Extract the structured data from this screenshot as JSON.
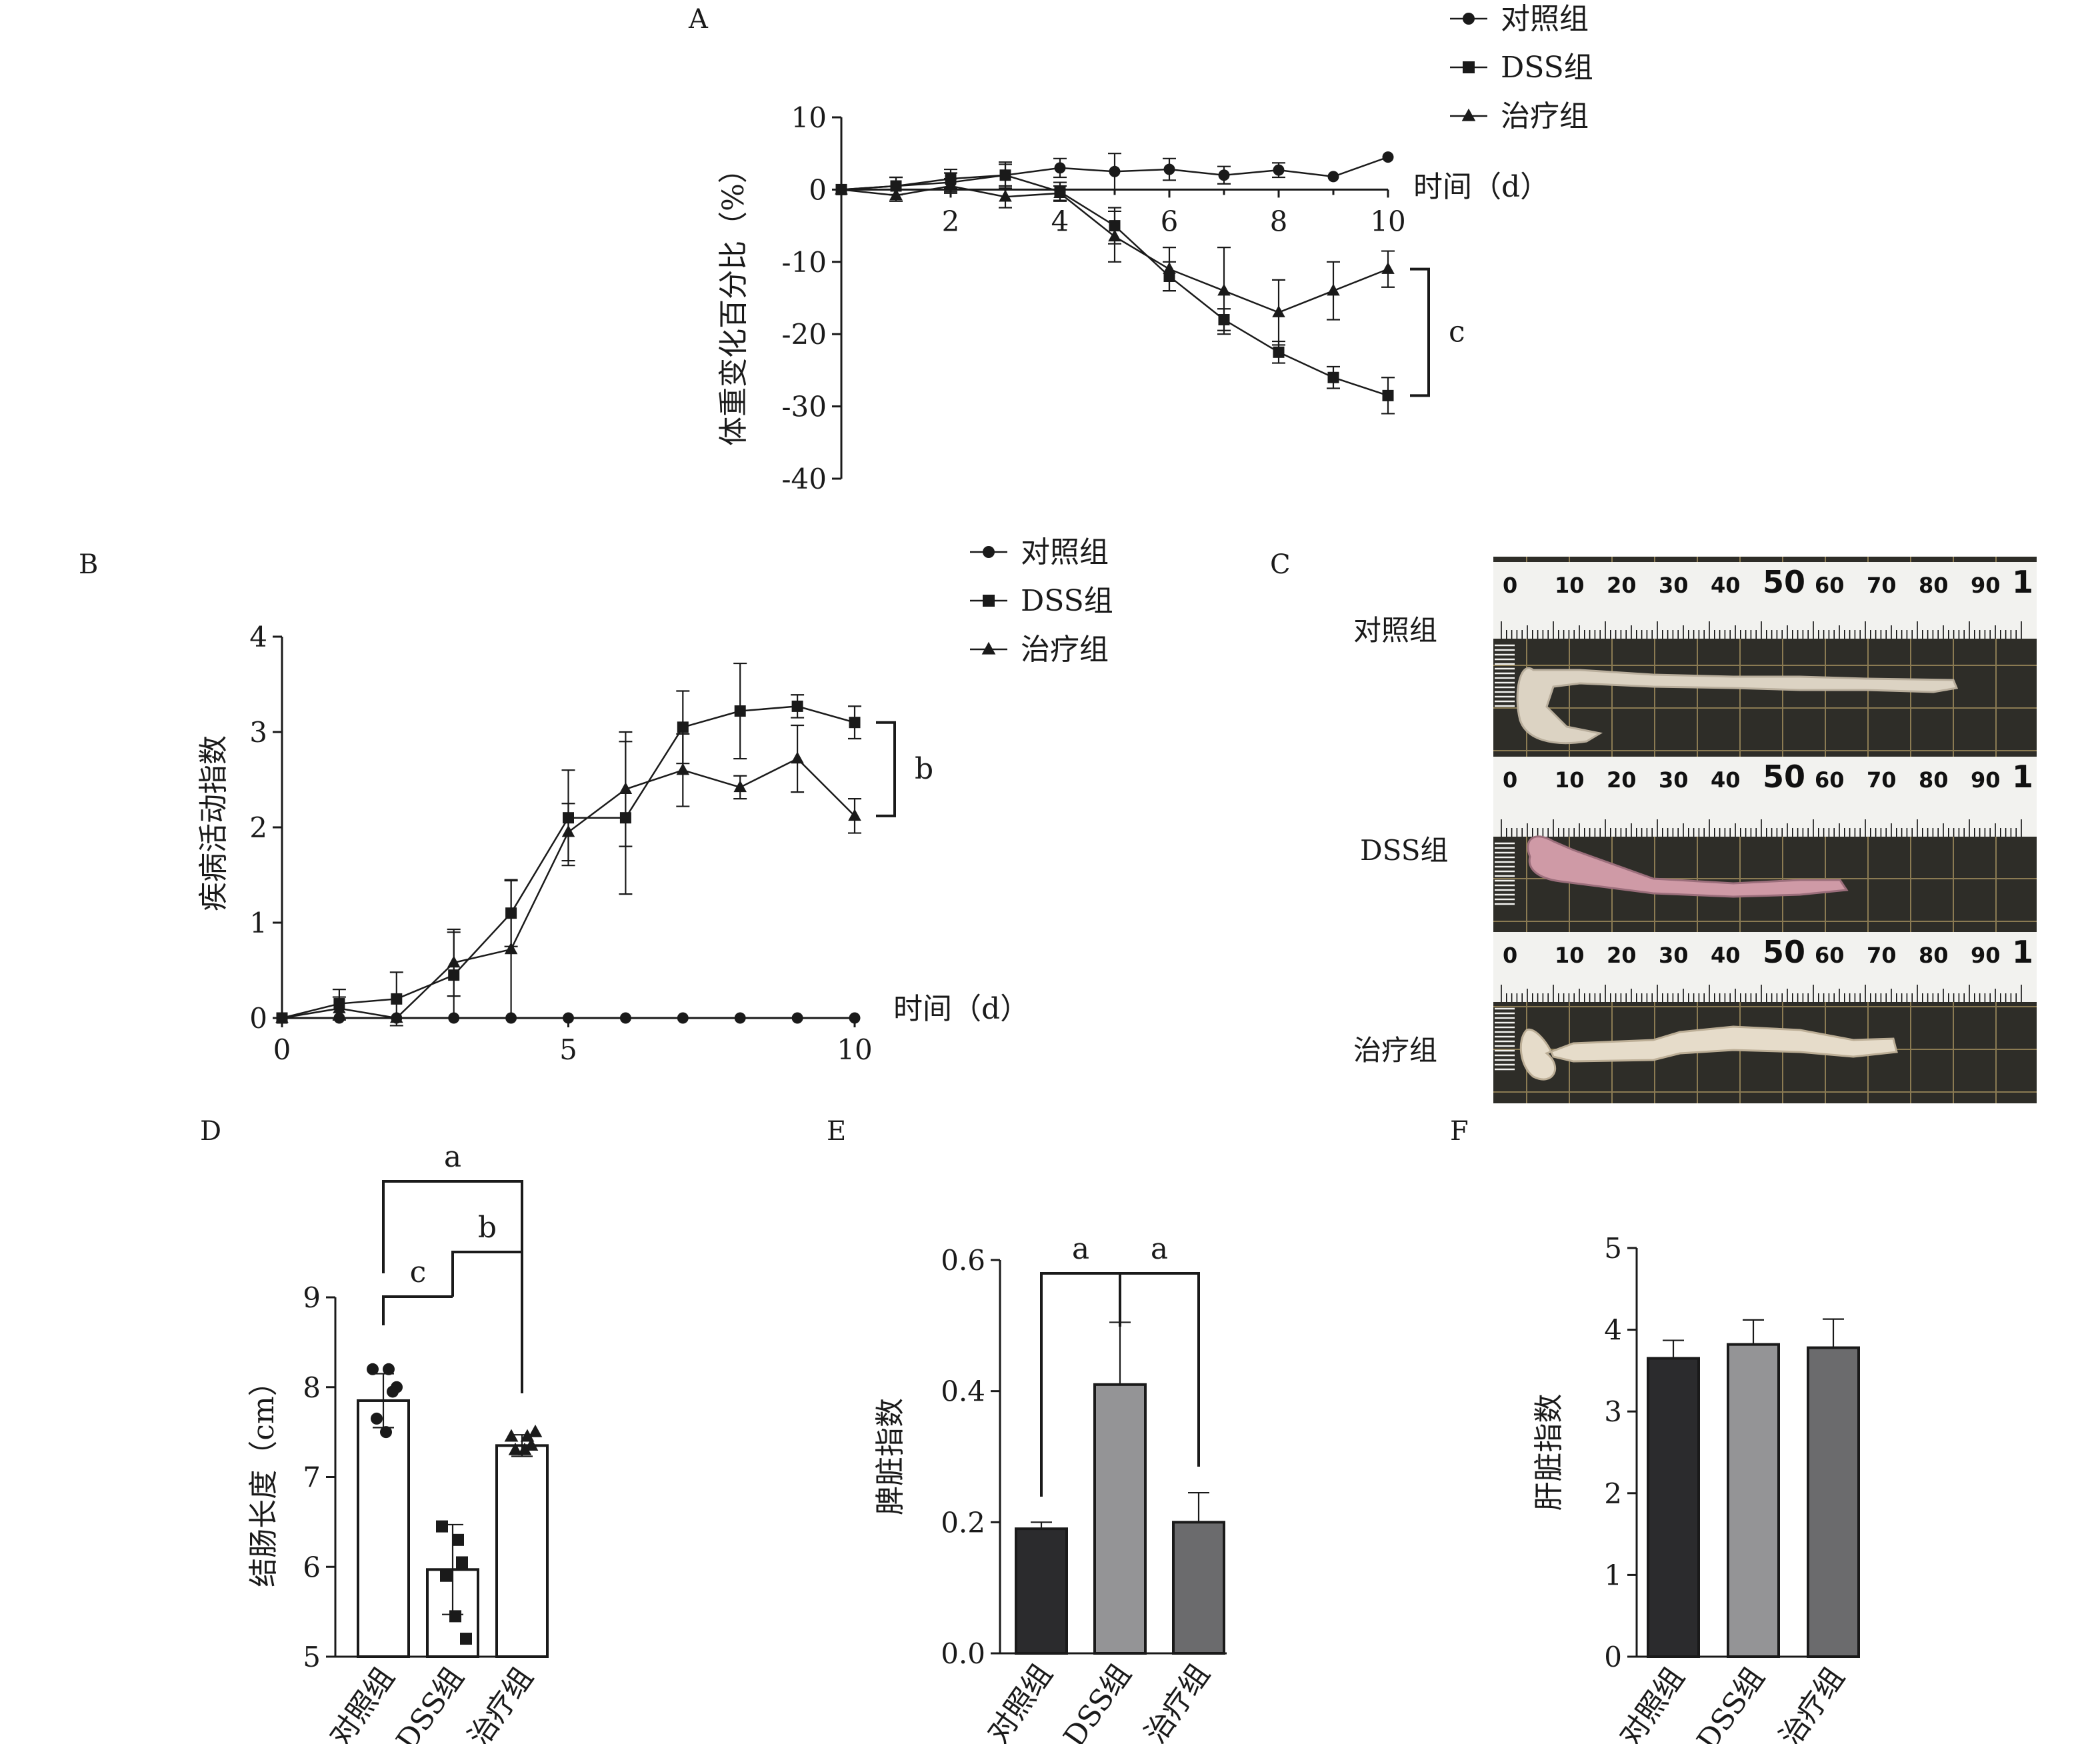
{
  "panels": {
    "A": "A",
    "B": "B",
    "C": "C",
    "D": "D",
    "E": "E",
    "F": "F"
  },
  "photo": {
    "row_labels": [
      "对照组",
      "DSS组",
      "治疗组"
    ],
    "ruler_numbers": [
      "0",
      "10",
      "20",
      "30",
      "40",
      "50",
      "60",
      "70",
      "80",
      "90",
      "1"
    ]
  },
  "chart_data": [
    {
      "id": "A",
      "type": "line",
      "ylabel": "体重变化百分比（%）",
      "xlabel": "时间（d）",
      "ylim": [
        -40,
        10
      ],
      "xlim": [
        0,
        10
      ],
      "xticks": [
        2,
        4,
        6,
        8,
        10
      ],
      "yticks": [
        10,
        0,
        -10,
        -20,
        -30,
        -40
      ],
      "legend": "top-right",
      "significance": "c",
      "series": [
        {
          "name": "对照组",
          "marker": "circle",
          "x": [
            0,
            1,
            2,
            3,
            4,
            5,
            6,
            7,
            8,
            9,
            10
          ],
          "y": [
            0,
            0.5,
            1,
            2,
            3,
            2.5,
            2.8,
            2,
            2.7,
            1.8,
            4.5
          ],
          "err": [
            0,
            1.2,
            1.3,
            1.5,
            1.3,
            2.5,
            1.5,
            1.2,
            1,
            0,
            0
          ]
        },
        {
          "name": "DSS组",
          "marker": "square",
          "x": [
            0,
            1,
            2,
            3,
            4,
            5,
            6,
            7,
            8,
            9,
            10
          ],
          "y": [
            0,
            0.5,
            1.5,
            2,
            -0.3,
            -5,
            -12,
            -18,
            -22.5,
            -26,
            -28.5
          ],
          "err": [
            0,
            1.2,
            1.3,
            1.8,
            1.3,
            2.5,
            2,
            1.5,
            1.5,
            1.5,
            2.5
          ]
        },
        {
          "name": "治疗组",
          "marker": "triangle",
          "x": [
            0,
            1,
            2,
            3,
            4,
            5,
            6,
            7,
            8,
            9,
            10
          ],
          "y": [
            0,
            -0.8,
            0.5,
            -1,
            -0.5,
            -6.5,
            -11,
            -14,
            -17,
            -14,
            -11
          ],
          "err": [
            0,
            0.8,
            1,
            1.5,
            1,
            3.5,
            3,
            6,
            4.5,
            4,
            2.5
          ]
        }
      ]
    },
    {
      "id": "B",
      "type": "line",
      "ylabel": "疾病活动指数",
      "xlabel": "时间（d）",
      "ylim": [
        0,
        4
      ],
      "xlim": [
        0,
        10
      ],
      "xticks": [
        0,
        5,
        10
      ],
      "yticks": [
        0,
        1,
        2,
        3,
        4
      ],
      "legend": "top-right",
      "significance": "b",
      "series": [
        {
          "name": "对照组",
          "marker": "circle",
          "x": [
            0,
            1,
            2,
            3,
            4,
            5,
            6,
            7,
            8,
            9,
            10
          ],
          "y": [
            0,
            0,
            0,
            0,
            0,
            0,
            0,
            0,
            0,
            0,
            0
          ],
          "err": [
            0,
            0,
            0,
            0,
            0,
            0,
            0,
            0,
            0,
            0,
            0
          ]
        },
        {
          "name": "DSS组",
          "marker": "square",
          "x": [
            0,
            1,
            2,
            3,
            4,
            5,
            6,
            7,
            8,
            9,
            10
          ],
          "y": [
            0,
            0.15,
            0.2,
            0.45,
            1.1,
            2.1,
            2.1,
            3.05,
            3.22,
            3.27,
            3.1
          ],
          "err": [
            0,
            0.15,
            0.28,
            0.45,
            0.35,
            0.5,
            0.8,
            0.38,
            0.5,
            0.12,
            0.17
          ]
        },
        {
          "name": "治疗组",
          "marker": "triangle",
          "x": [
            0,
            1,
            2,
            3,
            4,
            5,
            6,
            7,
            8,
            9,
            10
          ],
          "y": [
            0,
            0.1,
            0,
            0.58,
            0.72,
            1.95,
            2.4,
            2.6,
            2.42,
            2.72,
            2.12
          ],
          "err": [
            0,
            0.12,
            0,
            0.35,
            0.72,
            0.3,
            0.6,
            0.38,
            0.12,
            0.35,
            0.18
          ]
        }
      ]
    },
    {
      "id": "D",
      "type": "bar",
      "ylabel": "结肠长度（cm）",
      "categories": [
        "对照组",
        "DSS组",
        "治疗组"
      ],
      "values": [
        7.85,
        5.97,
        7.35
      ],
      "err": [
        0.3,
        0.5,
        0.12
      ],
      "points": [
        [
          8.2,
          8.2,
          7.95,
          7.65,
          7.5,
          8.0
        ],
        [
          6.45,
          6.3,
          6.05,
          5.9,
          5.45,
          5.2
        ],
        [
          7.45,
          7.45,
          7.35,
          7.3,
          7.3,
          7.5
        ]
      ],
      "point_marker": [
        "circle",
        "square",
        "triangle"
      ],
      "ylim": [
        5,
        9
      ],
      "yticks": [
        5,
        6,
        7,
        8,
        9
      ],
      "fills": [
        "#ffffff",
        "#ffffff",
        "#ffffff"
      ],
      "significance": [
        {
          "from": 0,
          "to": 1,
          "label": "c"
        },
        {
          "from": 1,
          "to": 2,
          "label": "b"
        },
        {
          "from": 0,
          "to": 2,
          "label": "a"
        }
      ]
    },
    {
      "id": "E",
      "type": "bar",
      "ylabel": "脾脏指数",
      "categories": [
        "对照组",
        "DSS组",
        "治疗组"
      ],
      "values": [
        0.19,
        0.41,
        0.2
      ],
      "err": [
        0.01,
        0.095,
        0.045
      ],
      "ylim": [
        0,
        0.6
      ],
      "yticks": [
        "0.0",
        "0.2",
        "0.4",
        "0.6"
      ],
      "fills": [
        "#2b2b2d",
        "#949496",
        "#6b6b6d"
      ],
      "significance": [
        {
          "from": 0,
          "to": 1,
          "label": "a"
        },
        {
          "from": 1,
          "to": 2,
          "label": "a"
        }
      ]
    },
    {
      "id": "F",
      "type": "bar",
      "ylabel": "肝脏指数",
      "categories": [
        "对照组",
        "DSS组",
        "治疗组"
      ],
      "values": [
        3.65,
        3.82,
        3.78
      ],
      "err": [
        0.22,
        0.3,
        0.35
      ],
      "ylim": [
        0,
        5
      ],
      "yticks": [
        0,
        1,
        2,
        3,
        4,
        5
      ],
      "fills": [
        "#2b2b2d",
        "#949496",
        "#6b6b6d"
      ],
      "significance": []
    }
  ]
}
